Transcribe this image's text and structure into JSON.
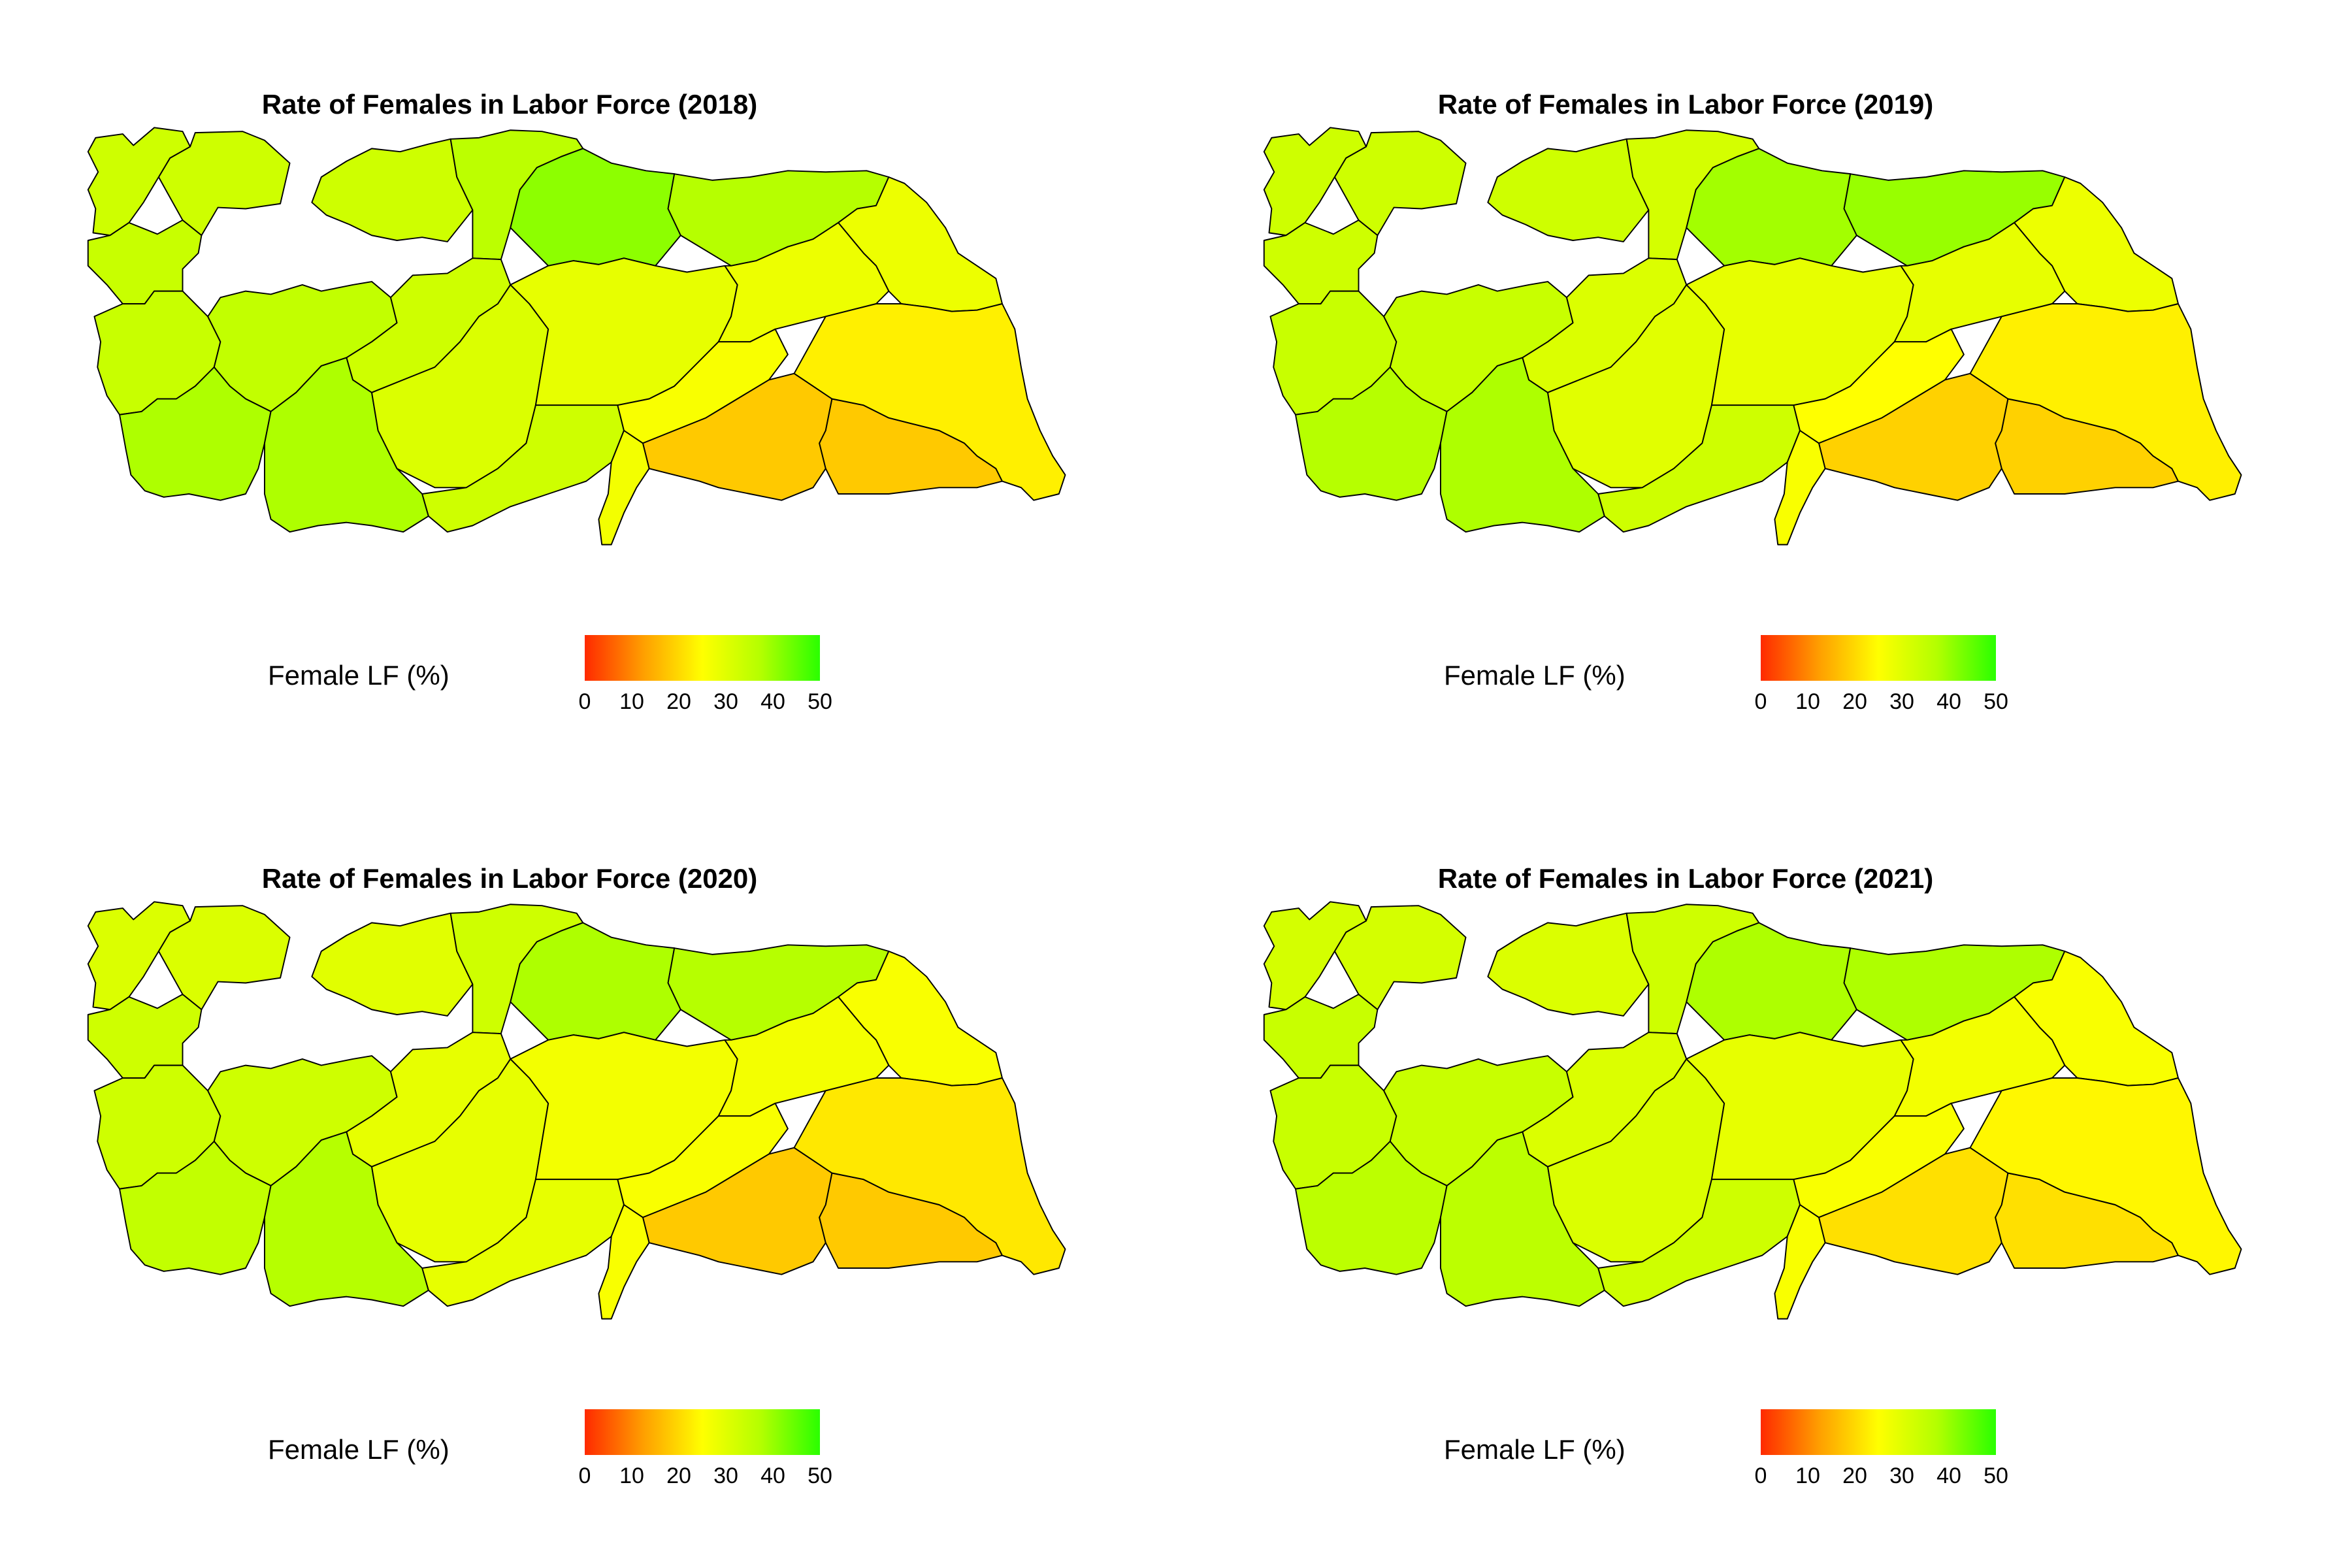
{
  "panels": [
    {
      "title": "Rate of Females in Labor Force (2018)",
      "legend_title": "Female LF (%)",
      "legend_ticks": [
        "0",
        "10",
        "20",
        "30",
        "40",
        "50"
      ],
      "region_values": [
        {
          "region": "northwest",
          "value": 33
        },
        {
          "region": "thrace",
          "value": 33
        },
        {
          "region": "marmara-south",
          "value": 34
        },
        {
          "region": "black-sea-west",
          "value": 33
        },
        {
          "region": "central-north-a",
          "value": 36
        },
        {
          "region": "central-north-b",
          "value": 41
        },
        {
          "region": "black-sea-east",
          "value": 37
        },
        {
          "region": "northeast",
          "value": 28
        },
        {
          "region": "aegean-north",
          "value": 34
        },
        {
          "region": "aegean-inner",
          "value": 35
        },
        {
          "region": "aegean-south",
          "value": 38
        },
        {
          "region": "mediterranean-west",
          "value": 38
        },
        {
          "region": "central-west",
          "value": 33
        },
        {
          "region": "central-south",
          "value": 31
        },
        {
          "region": "central-east",
          "value": 29
        },
        {
          "region": "east-central",
          "value": 28
        },
        {
          "region": "mediterranean-east",
          "value": 33
        },
        {
          "region": "adana",
          "value": 26
        },
        {
          "region": "southeast-west",
          "value": 18
        },
        {
          "region": "southeast-east",
          "value": 18
        },
        {
          "region": "van",
          "value": 23
        },
        {
          "region": "hatay",
          "value": 27
        }
      ]
    },
    {
      "title": "Rate of Females in Labor Force (2019)",
      "legend_title": "Female LF (%)",
      "legend_ticks": [
        "0",
        "10",
        "20",
        "30",
        "40",
        "50"
      ],
      "region_values": [
        {
          "region": "northwest",
          "value": 33
        },
        {
          "region": "thrace",
          "value": 33
        },
        {
          "region": "marmara-south",
          "value": 33
        },
        {
          "region": "black-sea-west",
          "value": 33
        },
        {
          "region": "central-north-a",
          "value": 32
        },
        {
          "region": "central-north-b",
          "value": 39
        },
        {
          "region": "black-sea-east",
          "value": 40
        },
        {
          "region": "northeast",
          "value": 28
        },
        {
          "region": "aegean-north",
          "value": 34
        },
        {
          "region": "aegean-inner",
          "value": 34
        },
        {
          "region": "aegean-south",
          "value": 37
        },
        {
          "region": "mediterranean-west",
          "value": 38
        },
        {
          "region": "central-west",
          "value": 31
        },
        {
          "region": "central-south",
          "value": 30
        },
        {
          "region": "central-east",
          "value": 29
        },
        {
          "region": "east-central",
          "value": 29
        },
        {
          "region": "mediterranean-east",
          "value": 33
        },
        {
          "region": "adana",
          "value": 25
        },
        {
          "region": "southeast-west",
          "value": 19
        },
        {
          "region": "southeast-east",
          "value": 19
        },
        {
          "region": "van",
          "value": 23
        },
        {
          "region": "hatay",
          "value": 26
        }
      ]
    },
    {
      "title": "Rate of Females in Labor Force (2020)",
      "legend_title": "Female LF (%)",
      "legend_ticks": [
        "0",
        "10",
        "20",
        "30",
        "40",
        "50"
      ],
      "region_values": [
        {
          "region": "northwest",
          "value": 31
        },
        {
          "region": "thrace",
          "value": 31
        },
        {
          "region": "marmara-south",
          "value": 33
        },
        {
          "region": "black-sea-west",
          "value": 30
        },
        {
          "region": "central-north-a",
          "value": 33
        },
        {
          "region": "central-north-b",
          "value": 38
        },
        {
          "region": "black-sea-east",
          "value": 37
        },
        {
          "region": "northeast",
          "value": 26
        },
        {
          "region": "aegean-north",
          "value": 33
        },
        {
          "region": "aegean-inner",
          "value": 33
        },
        {
          "region": "aegean-south",
          "value": 35
        },
        {
          "region": "mediterranean-west",
          "value": 37
        },
        {
          "region": "central-west",
          "value": 29
        },
        {
          "region": "central-south",
          "value": 29
        },
        {
          "region": "central-east",
          "value": 27
        },
        {
          "region": "east-central",
          "value": 27
        },
        {
          "region": "mediterranean-east",
          "value": 29
        },
        {
          "region": "adana",
          "value": 26
        },
        {
          "region": "southeast-west",
          "value": 18
        },
        {
          "region": "southeast-east",
          "value": 18
        },
        {
          "region": "van",
          "value": 22
        },
        {
          "region": "hatay",
          "value": 26
        }
      ]
    },
    {
      "title": "Rate of Females in Labor Force (2021)",
      "legend_title": "Female LF (%)",
      "legend_ticks": [
        "0",
        "10",
        "20",
        "30",
        "40",
        "50"
      ],
      "region_values": [
        {
          "region": "northwest",
          "value": 32
        },
        {
          "region": "thrace",
          "value": 32
        },
        {
          "region": "marmara-south",
          "value": 34
        },
        {
          "region": "black-sea-west",
          "value": 31
        },
        {
          "region": "central-north-a",
          "value": 33
        },
        {
          "region": "central-north-b",
          "value": 38
        },
        {
          "region": "black-sea-east",
          "value": 38
        },
        {
          "region": "northeast",
          "value": 26
        },
        {
          "region": "aegean-north",
          "value": 34
        },
        {
          "region": "aegean-inner",
          "value": 34
        },
        {
          "region": "aegean-south",
          "value": 36
        },
        {
          "region": "mediterranean-west",
          "value": 36
        },
        {
          "region": "central-west",
          "value": 31
        },
        {
          "region": "central-south",
          "value": 31
        },
        {
          "region": "central-east",
          "value": 29
        },
        {
          "region": "east-central",
          "value": 27
        },
        {
          "region": "mediterranean-east",
          "value": 33
        },
        {
          "region": "adana",
          "value": 26
        },
        {
          "region": "southeast-west",
          "value": 21
        },
        {
          "region": "southeast-east",
          "value": 21
        },
        {
          "region": "van",
          "value": 24
        },
        {
          "region": "hatay",
          "value": 26
        }
      ]
    }
  ],
  "color_scale": {
    "min": 0,
    "max": 50,
    "stops": [
      "#ff2a00",
      "#ff9f00",
      "#ffff00",
      "#b3ff00",
      "#2aff00"
    ]
  }
}
